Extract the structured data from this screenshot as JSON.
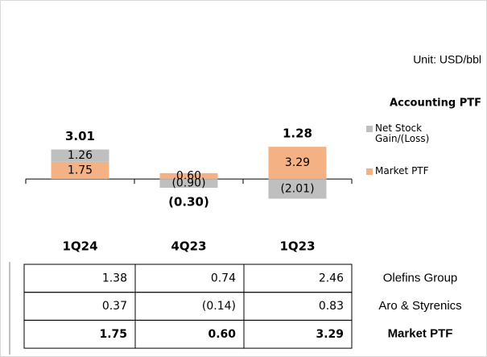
{
  "chart_data": {
    "type": "bar",
    "title": "Accounting PTF",
    "unit": "Unit: USD/bbl",
    "categories": [
      "1Q24",
      "4Q23",
      "1Q23"
    ],
    "series": [
      {
        "name": "Market PTF",
        "color": "#f4b183",
        "values": [
          1.75,
          0.6,
          3.29
        ],
        "value_labels": [
          "1.75",
          "0.60",
          "3.29"
        ]
      },
      {
        "name": "Net Stock Gain/(Loss)",
        "color": "#bfbfbf",
        "values": [
          1.26,
          -0.9,
          -2.01
        ],
        "value_labels": [
          "1.26",
          "(0.90)",
          "(2.01)"
        ]
      }
    ],
    "totals": {
      "values": [
        3.01,
        -0.3,
        1.28
      ],
      "value_labels": [
        "3.01",
        "(0.30)",
        "1.28"
      ]
    },
    "ylim": [
      -2.5,
      4
    ]
  },
  "table": {
    "rows": [
      {
        "label": "Olefins Group",
        "cells": [
          "1.38",
          "0.74",
          "2.46"
        ]
      },
      {
        "label": "Aro & Styrenics",
        "cells": [
          "0.37",
          "(0.14)",
          "0.83"
        ]
      },
      {
        "label": "Market PTF",
        "cells": [
          "1.75",
          "0.60",
          "3.29"
        ]
      }
    ]
  }
}
